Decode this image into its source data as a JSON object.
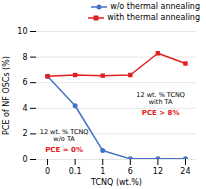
{
  "chart_data": {
    "type": "line",
    "xlabel": "TCNQ (wt.%)",
    "ylabel": "PCE of NF OSCs (%)",
    "categories": [
      "0",
      "0.1",
      "1",
      "6",
      "12",
      "24"
    ],
    "series": [
      {
        "name": "w/o thermal annealing",
        "color": "#4472c4",
        "marker": "circle",
        "values": [
          6.5,
          4.2,
          0.7,
          0.05,
          0.05,
          0.05
        ]
      },
      {
        "name": "with thermal annealing",
        "color": "#e02020",
        "marker": "square",
        "values": [
          6.5,
          6.6,
          6.55,
          6.6,
          8.3,
          7.5
        ]
      }
    ],
    "ylim": [
      0,
      10
    ],
    "yticks": [
      0,
      2,
      4,
      6,
      8,
      10
    ],
    "grid": true,
    "legend": "upper right",
    "annotations": [
      {
        "text": "12 wt. % TCNQ\nw/o TA"
      },
      {
        "text": "PCE = 0%",
        "color": "#e02020"
      },
      {
        "text": "12 wt. % TCNQ\nwith TA"
      },
      {
        "text": "PCE > 8%",
        "color": "#e02020"
      }
    ]
  }
}
